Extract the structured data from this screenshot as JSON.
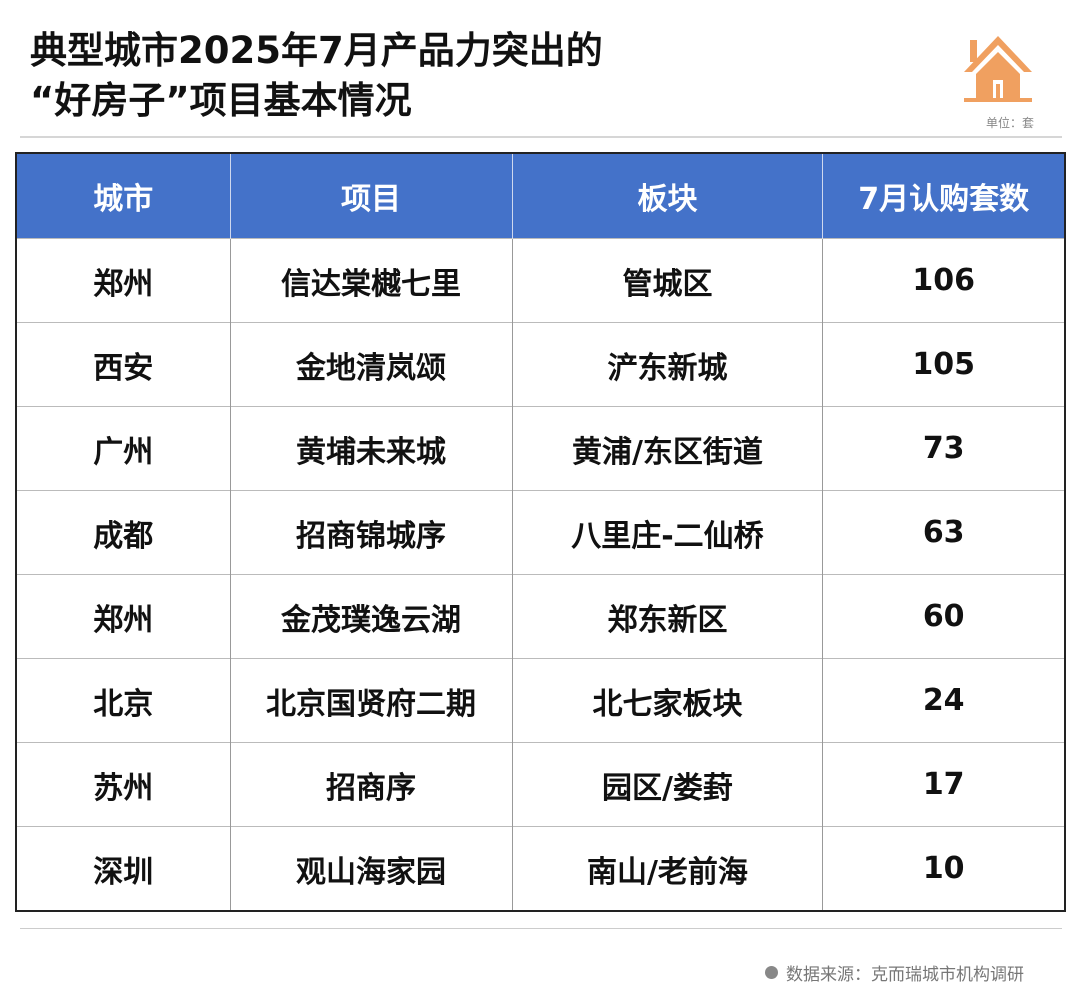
{
  "title": {
    "line1": "典型城市2025年7月产品力突出的",
    "line2": "“好房子”项目基本情况"
  },
  "unit": "单位：套",
  "icon": "house-icon",
  "colors": {
    "header_bg": "#4472c9",
    "house_icon": "#f0a060"
  },
  "table": {
    "headers": [
      "城市",
      "项目",
      "板块",
      "7月认购套数"
    ],
    "rows": [
      [
        "郑州",
        "信达棠樾七里",
        "管城区",
        "106"
      ],
      [
        "西安",
        "金地清岚颂",
        "浐东新城",
        "105"
      ],
      [
        "广州",
        "黄埔未来城",
        "黄浦/东区街道",
        "73"
      ],
      [
        "成都",
        "招商锦城序",
        "八里庄-二仙桥",
        "63"
      ],
      [
        "郑州",
        "金茂璞逸云湖",
        "郑东新区",
        "60"
      ],
      [
        "北京",
        "北京国贤府二期",
        "北七家板块",
        "24"
      ],
      [
        "苏州",
        "招商序",
        "园区/娄葑",
        "17"
      ],
      [
        "深圳",
        "观山海家园",
        "南山/老前海",
        "10"
      ]
    ]
  },
  "source": "数据来源：克而瑞城市机构调研"
}
